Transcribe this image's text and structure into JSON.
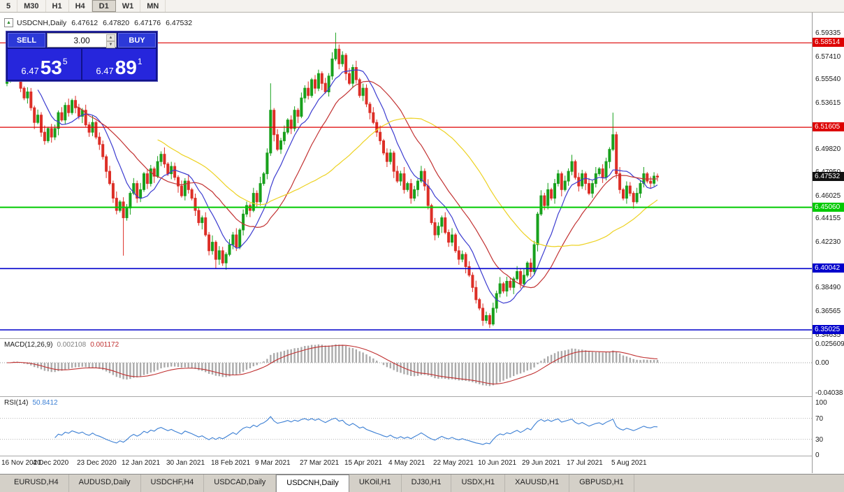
{
  "toolbar": {
    "timeframes": [
      "5",
      "M30",
      "H1",
      "H4",
      "D1",
      "W1",
      "MN"
    ],
    "active": "D1"
  },
  "chart": {
    "title": "USDCNH,Daily",
    "open": "6.47612",
    "high": "6.47820",
    "low": "6.47176",
    "close": "6.47532"
  },
  "trade_panel": {
    "sell_label": "SELL",
    "buy_label": "BUY",
    "volume": "3.00",
    "sell_price": {
      "prefix": "6.47",
      "big": "53",
      "sup": "5"
    },
    "buy_price": {
      "prefix": "6.47",
      "big": "89",
      "sup": "1"
    }
  },
  "price_axis": {
    "grid": [
      {
        "t": "6.59335",
        "p": 6.59335
      },
      {
        "t": "6.57410",
        "p": 6.5741
      },
      {
        "t": "6.55540",
        "p": 6.5554
      },
      {
        "t": "6.53615",
        "p": 6.53615
      },
      {
        "t": "6.49820",
        "p": 6.4982
      },
      {
        "t": "6.47950",
        "p": 6.4795
      },
      {
        "t": "6.46025",
        "p": 6.46025
      },
      {
        "t": "6.44155",
        "p": 6.44155
      },
      {
        "t": "6.42230",
        "p": 6.4223
      },
      {
        "t": "6.38490",
        "p": 6.3849
      },
      {
        "t": "6.36565",
        "p": 6.36565
      },
      {
        "t": "6.34635",
        "p": 6.34635
      }
    ],
    "current": {
      "t": "6.47532",
      "p": 6.47532
    }
  },
  "macd": {
    "name": "MACD(12,26,9)",
    "value_main": "0.002108",
    "value_signal": "0.001172",
    "axis_labels": [
      "0.025609",
      "0.00",
      "-0.04038"
    ],
    "params": {
      "fast": 12,
      "slow": 26,
      "signal": 9
    }
  },
  "rsi": {
    "name": "RSI(14)",
    "value": "50.8412",
    "axis_labels": [
      100,
      70,
      30,
      0
    ],
    "period": 14,
    "levels": [
      70,
      30
    ]
  },
  "dates": [
    {
      "label": "16 Nov 2020",
      "i": 0
    },
    {
      "label": "4 Dec 2020",
      "i": 13
    },
    {
      "label": "23 Dec 2020",
      "i": 26
    },
    {
      "label": "12 Jan 2021",
      "i": 39
    },
    {
      "label": "30 Jan 2021",
      "i": 52
    },
    {
      "label": "18 Feb 2021",
      "i": 65
    },
    {
      "label": "9 Mar 2021",
      "i": 78
    },
    {
      "label": "27 Mar 2021",
      "i": 91
    },
    {
      "label": "15 Apr 2021",
      "i": 104
    },
    {
      "label": "4 May 2021",
      "i": 117
    },
    {
      "label": "22 May 2021",
      "i": 130
    },
    {
      "label": "10 Jun 2021",
      "i": 143
    },
    {
      "label": "29 Jun 2021",
      "i": 156
    },
    {
      "label": "17 Jul 2021",
      "i": 169
    },
    {
      "label": "5 Aug 2021",
      "i": 182
    }
  ],
  "tabs": [
    {
      "label": "EURUSD,H4"
    },
    {
      "label": "AUDUSD,Daily"
    },
    {
      "label": "USDCHF,H4"
    },
    {
      "label": "USDCAD,Daily"
    },
    {
      "label": "USDCNH,Daily",
      "active": true
    },
    {
      "label": "UKOil,H1"
    },
    {
      "label": "DJ30,H1"
    },
    {
      "label": "USDX,H1"
    },
    {
      "label": "XAUUSD,H1"
    },
    {
      "label": "GBPUSD,H1"
    }
  ],
  "colors": {
    "bull": "#18a11c",
    "bear": "#dd2f27",
    "ma_fast": "#3c3cd0",
    "ma_mid": "#c23232",
    "ma_slow": "#edd222",
    "macd_hist": "#ababab",
    "macd_signal": "#c03030",
    "rsi_line": "#3b7fd4",
    "current_price_bg": "#111111",
    "level_red": "#dd0000",
    "level_green": "#00ca00",
    "level_blue": "#0000cc"
  },
  "chart_data": {
    "type": "candlestick",
    "symbol": "USDCNH",
    "timeframe": "Daily",
    "price_range": {
      "top": 6.6099,
      "bottom": 6.3434
    },
    "macd_range": {
      "top": 0.0323,
      "bottom": -0.0455
    },
    "first_open": 6.552,
    "wick_pattern": [
      0.0032,
      0.0018,
      0.0045,
      0.0024,
      0.0055,
      0.0015,
      0.0038
    ],
    "closes": [
      6.558,
      6.565,
      6.571,
      6.562,
      6.548,
      6.54,
      6.545,
      6.532,
      6.52,
      6.526,
      6.512,
      6.505,
      6.515,
      6.508,
      6.515,
      6.528,
      6.522,
      6.534,
      6.528,
      6.538,
      6.532,
      6.525,
      6.53,
      6.518,
      6.512,
      6.52,
      6.508,
      6.502,
      6.492,
      6.48,
      6.47,
      6.458,
      6.448,
      6.455,
      6.442,
      6.45,
      6.462,
      6.47,
      6.458,
      6.465,
      6.478,
      6.47,
      6.482,
      6.476,
      6.488,
      6.494,
      6.486,
      6.478,
      6.484,
      6.475,
      6.468,
      6.46,
      6.472,
      6.465,
      6.458,
      6.448,
      6.438,
      6.442,
      6.428,
      6.415,
      6.422,
      6.408,
      6.415,
      6.405,
      6.412,
      6.42,
      6.428,
      6.418,
      6.432,
      6.445,
      6.452,
      6.448,
      6.462,
      6.455,
      6.47,
      6.478,
      6.495,
      6.53,
      6.51,
      6.498,
      6.505,
      6.512,
      6.522,
      6.515,
      6.53,
      6.525,
      6.54,
      6.548,
      6.542,
      6.555,
      6.548,
      6.56,
      6.552,
      6.545,
      6.558,
      6.572,
      6.58,
      6.568,
      6.575,
      6.56,
      6.552,
      6.565,
      6.555,
      6.542,
      6.548,
      6.535,
      6.528,
      6.52,
      6.512,
      6.505,
      6.495,
      6.488,
      6.495,
      6.48,
      6.472,
      6.478,
      6.465,
      6.47,
      6.458,
      6.465,
      6.472,
      6.48,
      6.468,
      6.452,
      6.438,
      6.428,
      6.435,
      6.442,
      6.43,
      6.422,
      6.428,
      6.415,
      6.408,
      6.412,
      6.402,
      6.395,
      6.385,
      6.375,
      6.368,
      6.358,
      6.362,
      6.355,
      6.368,
      6.38,
      6.388,
      6.382,
      6.39,
      6.385,
      6.392,
      6.398,
      6.388,
      6.395,
      6.405,
      6.398,
      6.42,
      6.445,
      6.46,
      6.452,
      6.465,
      6.458,
      6.47,
      6.478,
      6.465,
      6.472,
      6.48,
      6.488,
      6.475,
      6.468,
      6.478,
      6.47,
      6.462,
      6.47,
      6.478,
      6.482,
      6.475,
      6.488,
      6.498,
      6.51,
      6.478,
      6.465,
      6.458,
      6.468,
      6.462,
      6.455,
      6.462,
      6.47,
      6.478,
      6.472,
      6.4702,
      6.4761,
      6.4753
    ],
    "spikes": [
      {
        "i": 34,
        "low": 6.411
      },
      {
        "i": 61,
        "low": 6.4
      },
      {
        "i": 77,
        "high": 6.552
      },
      {
        "i": 96,
        "high": 6.5935
      },
      {
        "i": 141,
        "low": 6.3518
      },
      {
        "i": 177,
        "high": 6.528
      },
      {
        "i": 190,
        "high": 6.4782,
        "low": 6.4718
      }
    ],
    "moving_averages": [
      {
        "period": 10,
        "color": "#3c3cd0"
      },
      {
        "period": 21,
        "color": "#c23232"
      },
      {
        "period": 45,
        "color": "#edd222"
      }
    ],
    "levels": [
      {
        "price": 6.58514,
        "color": "#dd0000",
        "width": 1.2,
        "label": "6.58514"
      },
      {
        "price": 6.51605,
        "color": "#dd0000",
        "width": 1.2,
        "label": "6.51605"
      },
      {
        "price": 6.4506,
        "color": "#00ca00",
        "width": 2,
        "label": "6.45060"
      },
      {
        "price": 6.40042,
        "color": "#0000cc",
        "width": 1.6,
        "label": "6.40042"
      },
      {
        "price": 6.35025,
        "color": "#0000cc",
        "width": 1.6,
        "label": "6.35025"
      }
    ]
  }
}
